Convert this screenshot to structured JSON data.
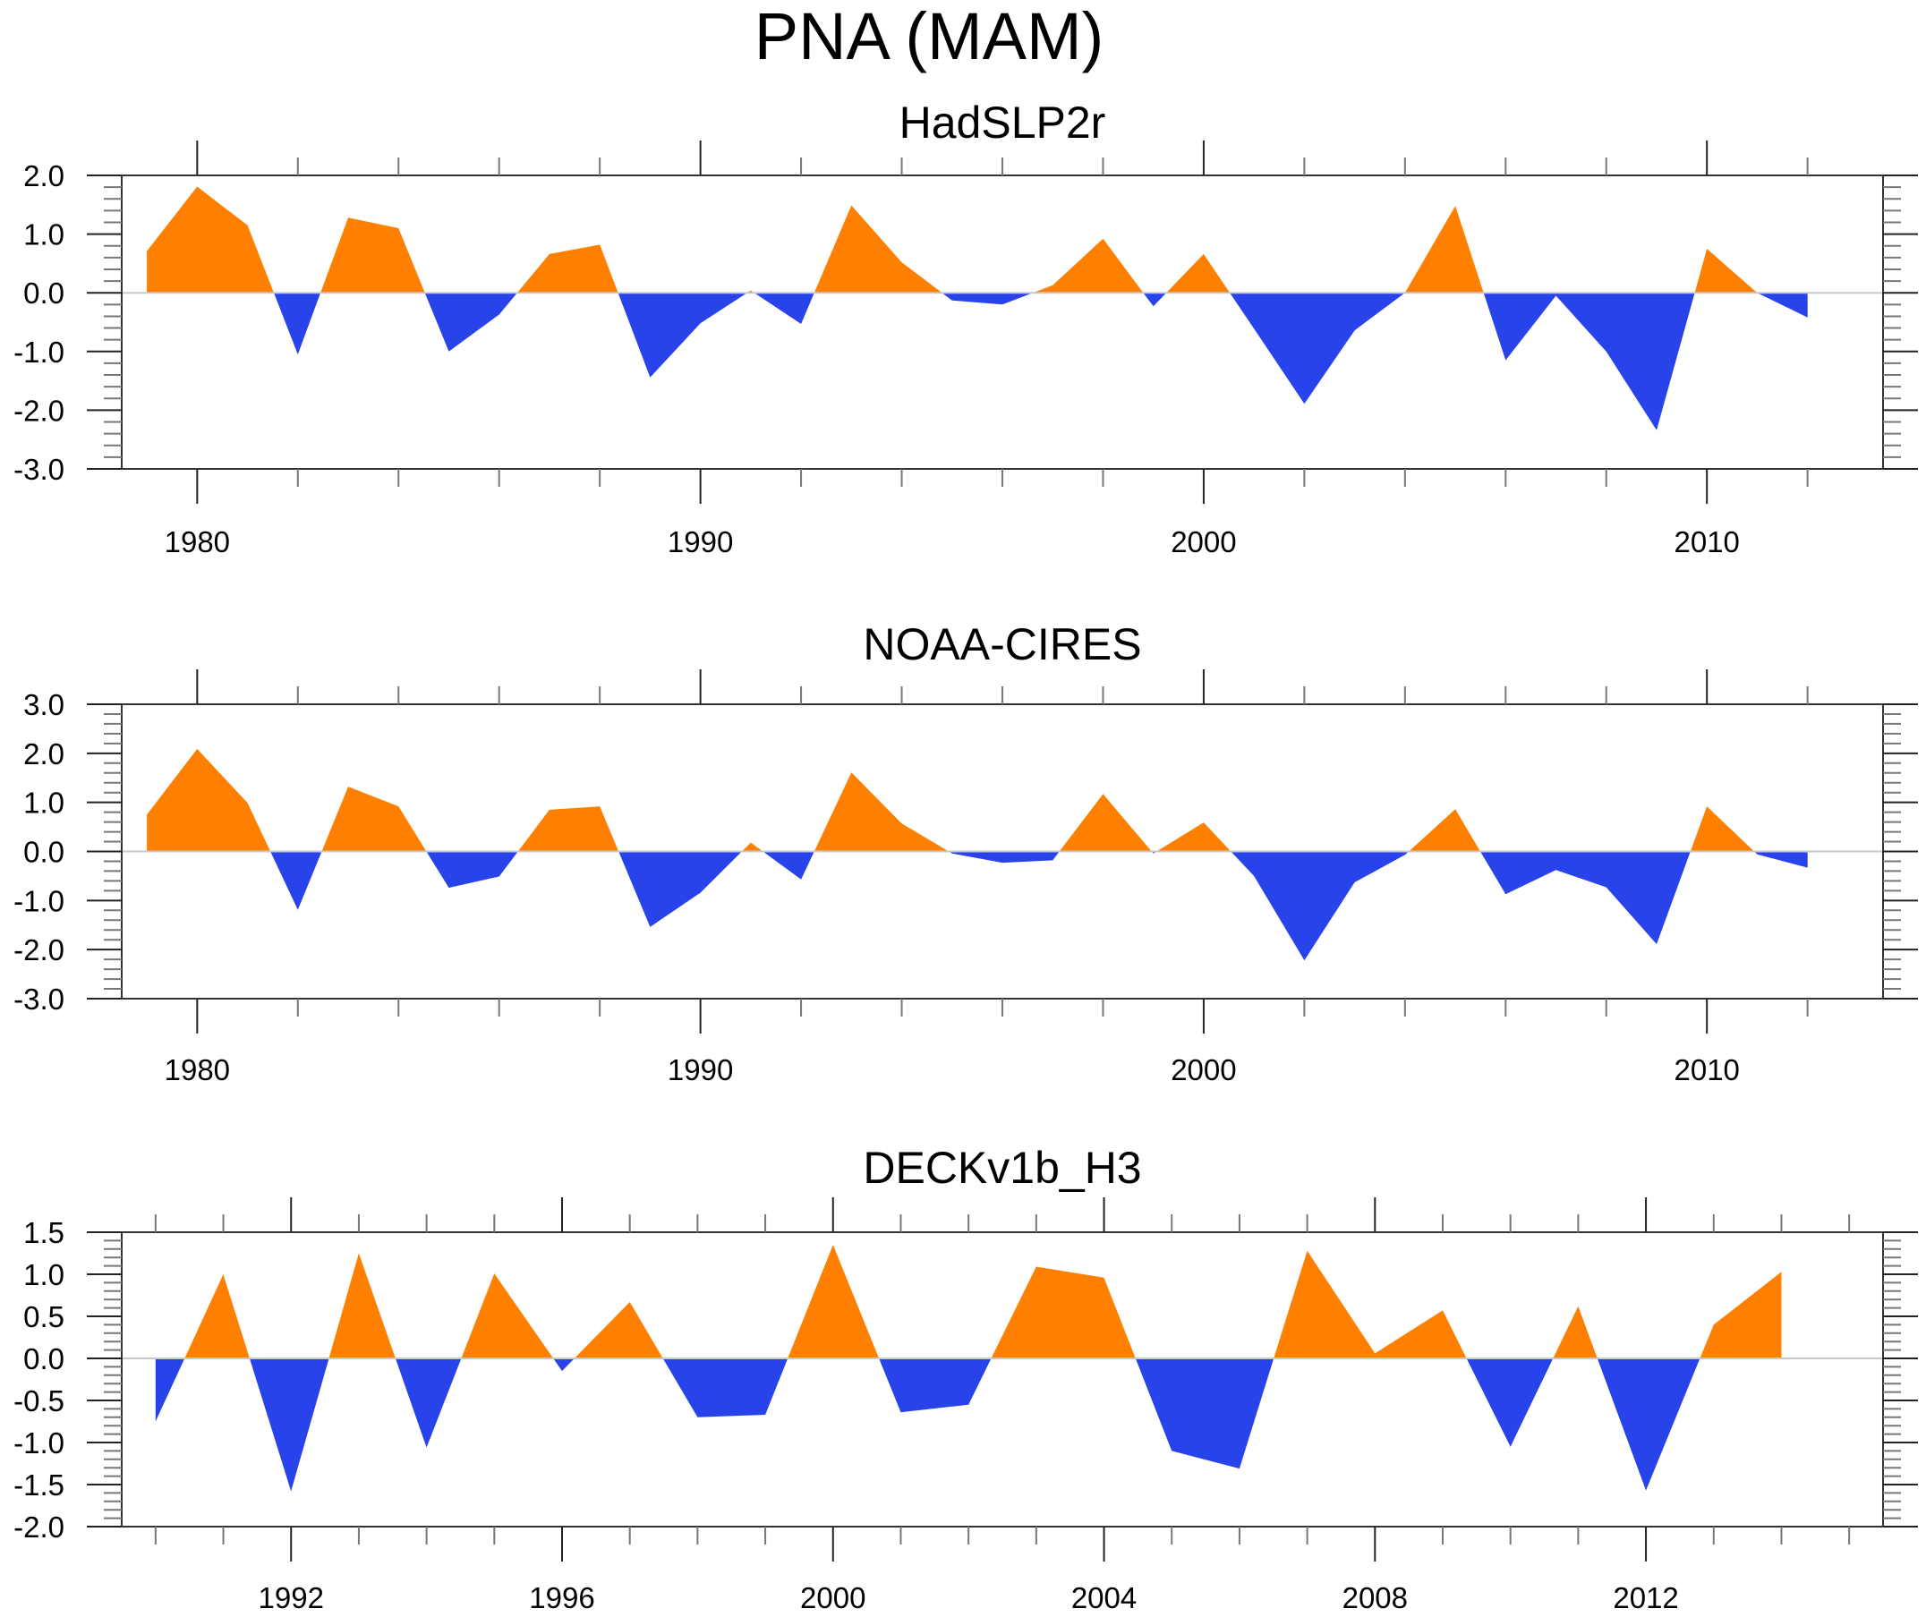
{
  "figure": {
    "title": "PNA (MAM)"
  },
  "colors": {
    "positive": "#FF8000",
    "negative": "#2943EB",
    "zero_line": "#C8C8C8",
    "axis": "#000000"
  },
  "chart_data": [
    {
      "type": "area",
      "title": "HadSLP2r",
      "xlabel": "",
      "ylabel": "",
      "xlim": [
        1978.5,
        2013.5
      ],
      "ylim": [
        -3.0,
        2.0
      ],
      "x_major_ticks": [
        1980,
        1990,
        2000,
        2010
      ],
      "x_tick_labels": [
        "1980",
        "1990",
        "2000",
        "2010"
      ],
      "x_minor_step": 2,
      "y_major_ticks": [
        2.0,
        1.0,
        0.0,
        -1.0,
        -2.0,
        -3.0
      ],
      "y_tick_labels": [
        "2.0",
        "1.0",
        "0.0",
        "-1.0",
        "-2.0",
        "-3.0"
      ],
      "y_minor_step": 0.2,
      "grid": false,
      "fill_above_zero": "positive",
      "fill_below_zero": "negative",
      "x": [
        1979,
        1980,
        1981,
        1982,
        1983,
        1984,
        1985,
        1986,
        1987,
        1988,
        1989,
        1990,
        1991,
        1992,
        1993,
        1994,
        1995,
        1996,
        1997,
        1998,
        1999,
        2000,
        2001,
        2002,
        2003,
        2004,
        2005,
        2006,
        2007,
        2008,
        2009,
        2010,
        2011,
        2012
      ],
      "values": [
        0.71,
        1.81,
        1.15,
        -1.05,
        1.28,
        1.1,
        -1.0,
        -0.37,
        0.66,
        0.82,
        -1.44,
        -0.52,
        0.04,
        -0.53,
        1.49,
        0.52,
        -0.13,
        -0.2,
        0.13,
        0.92,
        -0.23,
        0.66,
        -0.61,
        -1.89,
        -0.64,
        0.0,
        1.48,
        -1.15,
        -0.05,
        -1.0,
        -2.34,
        0.75,
        0.0,
        -0.42
      ]
    },
    {
      "type": "area",
      "title": "NOAA-CIRES",
      "xlabel": "",
      "ylabel": "",
      "xlim": [
        1978.5,
        2013.5
      ],
      "ylim": [
        -3.0,
        3.0
      ],
      "x_major_ticks": [
        1980,
        1990,
        2000,
        2010
      ],
      "x_tick_labels": [
        "1980",
        "1990",
        "2000",
        "2010"
      ],
      "x_minor_step": 2,
      "y_major_ticks": [
        3.0,
        2.0,
        1.0,
        0.0,
        -1.0,
        -2.0,
        -3.0
      ],
      "y_tick_labels": [
        "3.0",
        "2.0",
        "1.0",
        "0.0",
        "-1.0",
        "-2.0",
        "-3.0"
      ],
      "y_minor_step": 0.2,
      "grid": false,
      "fill_above_zero": "positive",
      "fill_below_zero": "negative",
      "x": [
        1979,
        1980,
        1981,
        1982,
        1983,
        1984,
        1985,
        1986,
        1987,
        1988,
        1989,
        1990,
        1991,
        1992,
        1993,
        1994,
        1995,
        1996,
        1997,
        1998,
        1999,
        2000,
        2001,
        2002,
        2003,
        2004,
        2005,
        2006,
        2007,
        2008,
        2009,
        2010,
        2011,
        2012
      ],
      "values": [
        0.75,
        2.09,
        0.99,
        -1.19,
        1.32,
        0.92,
        -0.74,
        -0.51,
        0.85,
        0.92,
        -1.54,
        -0.84,
        0.18,
        -0.57,
        1.61,
        0.57,
        -0.04,
        -0.23,
        -0.18,
        1.17,
        -0.04,
        0.59,
        -0.5,
        -2.22,
        -0.63,
        -0.07,
        0.86,
        -0.87,
        -0.38,
        -0.73,
        -1.89,
        0.92,
        -0.06,
        -0.33
      ]
    },
    {
      "type": "area",
      "title": "DECKv1b_H3",
      "xlabel": "",
      "ylabel": "",
      "xlim": [
        1989.5,
        2015.5
      ],
      "ylim": [
        -2.0,
        1.5
      ],
      "x_major_ticks": [
        1992,
        1996,
        2000,
        2004,
        2008,
        2012
      ],
      "x_tick_labels": [
        "1992",
        "1996",
        "2000",
        "2004",
        "2008",
        "2012"
      ],
      "x_minor_step": 1,
      "y_major_ticks": [
        1.5,
        1.0,
        0.5,
        0.0,
        -0.5,
        -1.0,
        -1.5,
        -2.0
      ],
      "y_tick_labels": [
        "1.5",
        "1.0",
        "0.5",
        "0.0",
        "-0.5",
        "-1.0",
        "-1.5",
        "-2.0"
      ],
      "y_minor_step": 0.1,
      "grid": false,
      "fill_above_zero": "positive",
      "fill_below_zero": "negative",
      "x": [
        1990,
        1991,
        1992,
        1993,
        1994,
        1995,
        1996,
        1997,
        1998,
        1999,
        2000,
        2001,
        2002,
        2003,
        2004,
        2005,
        2006,
        2007,
        2008,
        2009,
        2010,
        2011,
        2012,
        2013,
        2014
      ],
      "values": [
        -0.75,
        1.0,
        -1.58,
        1.25,
        -1.06,
        1.01,
        -0.15,
        0.67,
        -0.7,
        -0.67,
        1.35,
        -0.64,
        -0.55,
        1.09,
        0.96,
        -1.1,
        -1.31,
        1.28,
        0.06,
        0.57,
        -1.05,
        0.62,
        -1.57,
        0.4,
        1.03
      ]
    }
  ]
}
